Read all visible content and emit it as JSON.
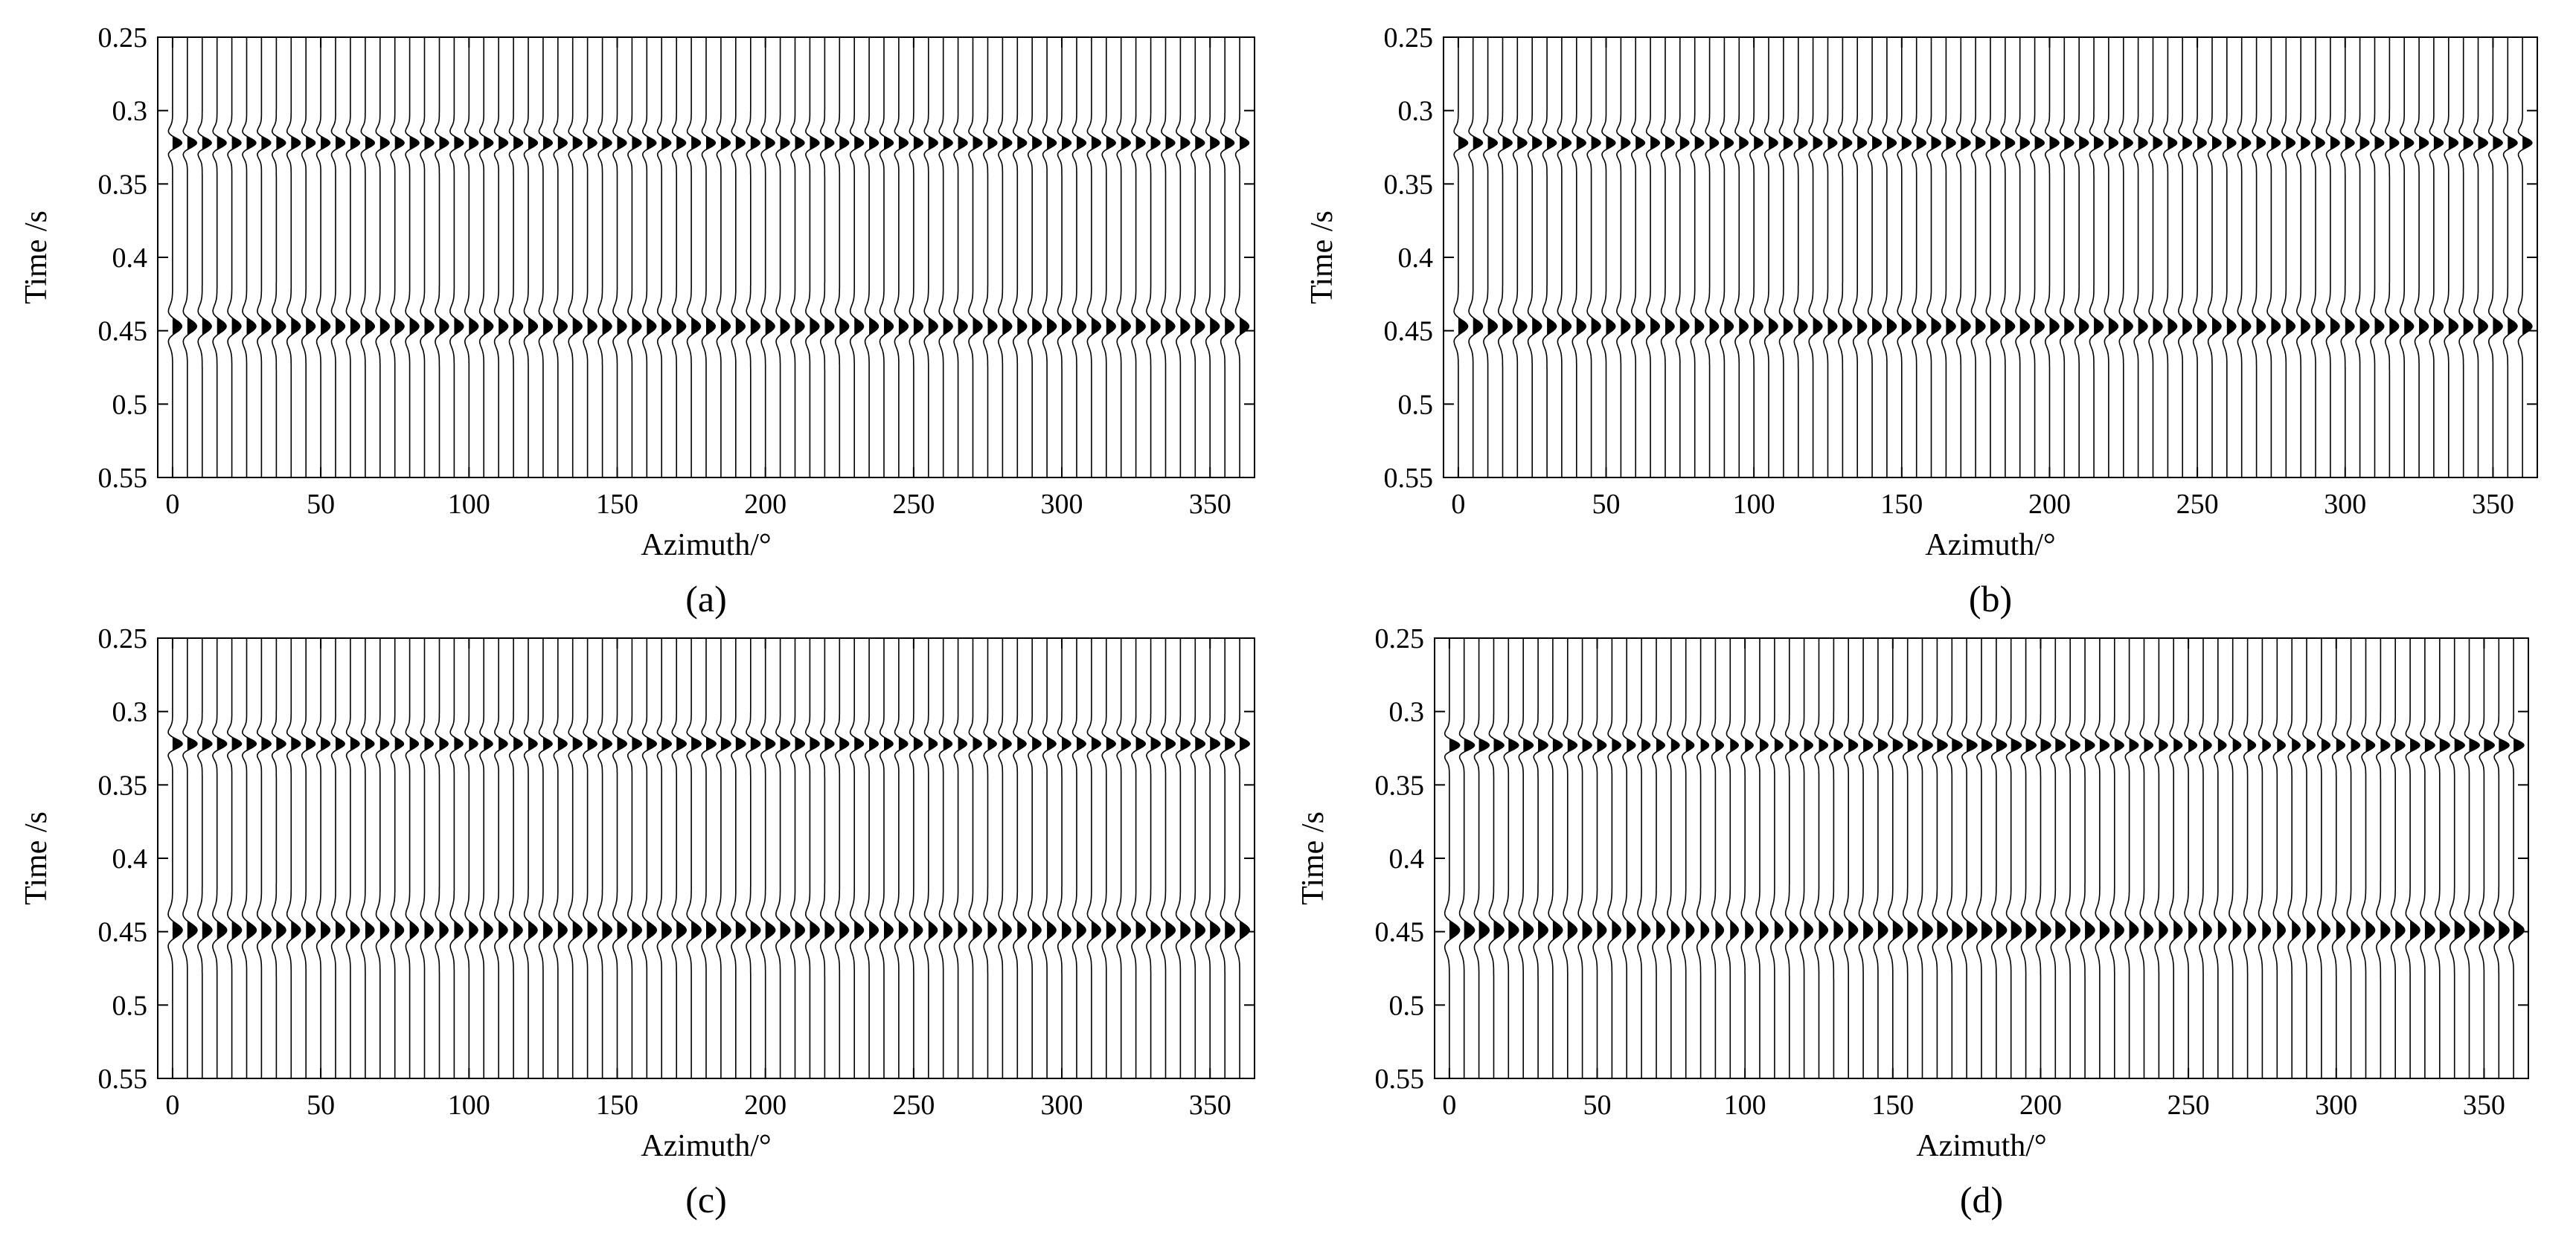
{
  "chart_data": [
    {
      "type": "seismic-wiggle",
      "panel_label": "(a)",
      "xlabel": "Azimuth/°",
      "ylabel": "Time /s",
      "xlim": [
        -5,
        365
      ],
      "ylim": [
        0.25,
        0.55
      ],
      "x_ticks": [
        "0",
        "50",
        "100",
        "150",
        "200",
        "250",
        "300",
        "350"
      ],
      "y_ticks": [
        "0.25",
        "0.3",
        "0.35",
        "0.4",
        "0.45",
        "0.5",
        "0.55"
      ],
      "trace_azimuths_deg": {
        "start": 0,
        "end": 360,
        "step": 5
      },
      "events": [
        {
          "time": 0.322,
          "amp": 1.0,
          "width": 0.0065
        },
        {
          "time": 0.447,
          "amp": 1.0,
          "width": 0.0085
        }
      ],
      "azimuthal_variation": 0.0,
      "grid": false,
      "legend": "none"
    },
    {
      "type": "seismic-wiggle",
      "panel_label": "(b)",
      "xlabel": "Azimuth/°",
      "ylabel": "Time /s",
      "xlim": [
        -5,
        365
      ],
      "ylim": [
        0.25,
        0.55
      ],
      "x_ticks": [
        "0",
        "50",
        "100",
        "150",
        "200",
        "250",
        "300",
        "350"
      ],
      "y_ticks": [
        "0.25",
        "0.3",
        "0.35",
        "0.4",
        "0.45",
        "0.5",
        "0.55"
      ],
      "trace_azimuths_deg": {
        "start": 0,
        "end": 360,
        "step": 5
      },
      "events": [
        {
          "time": 0.322,
          "amp": 1.0,
          "width": 0.0065
        },
        {
          "time": 0.447,
          "amp": 1.0,
          "width": 0.0085
        }
      ],
      "azimuthal_variation": 0.03,
      "grid": false,
      "legend": "none"
    },
    {
      "type": "seismic-wiggle",
      "panel_label": "(c)",
      "xlabel": "Azimuth/°",
      "ylabel": "Time /s",
      "xlim": [
        -5,
        365
      ],
      "ylim": [
        0.25,
        0.55
      ],
      "x_ticks": [
        "0",
        "50",
        "100",
        "150",
        "200",
        "250",
        "300",
        "350"
      ],
      "y_ticks": [
        "0.25",
        "0.3",
        "0.35",
        "0.4",
        "0.45",
        "0.5",
        "0.55"
      ],
      "trace_azimuths_deg": {
        "start": 0,
        "end": 360,
        "step": 5
      },
      "events": [
        {
          "time": 0.322,
          "amp": 1.0,
          "width": 0.0065
        },
        {
          "time": 0.449,
          "amp": 1.0,
          "width": 0.009
        }
      ],
      "azimuthal_variation": 0.06,
      "grid": false,
      "legend": "none"
    },
    {
      "type": "seismic-wiggle",
      "panel_label": "(d)",
      "xlabel": "Azimuth/°",
      "ylabel": "Time /s",
      "xlim": [
        -5,
        365
      ],
      "ylim": [
        0.25,
        0.55
      ],
      "x_ticks": [
        "0",
        "50",
        "100",
        "150",
        "200",
        "250",
        "300",
        "350"
      ],
      "y_ticks": [
        "0.25",
        "0.3",
        "0.35",
        "0.4",
        "0.45",
        "0.5",
        "0.55"
      ],
      "trace_azimuths_deg": {
        "start": 0,
        "end": 360,
        "step": 5
      },
      "events": [
        {
          "time": 0.323,
          "amp": 1.0,
          "width": 0.0065
        },
        {
          "time": 0.449,
          "amp": 1.0,
          "width": 0.0095
        }
      ],
      "azimuthal_variation": 0.12,
      "grid": false,
      "legend": "none"
    }
  ]
}
